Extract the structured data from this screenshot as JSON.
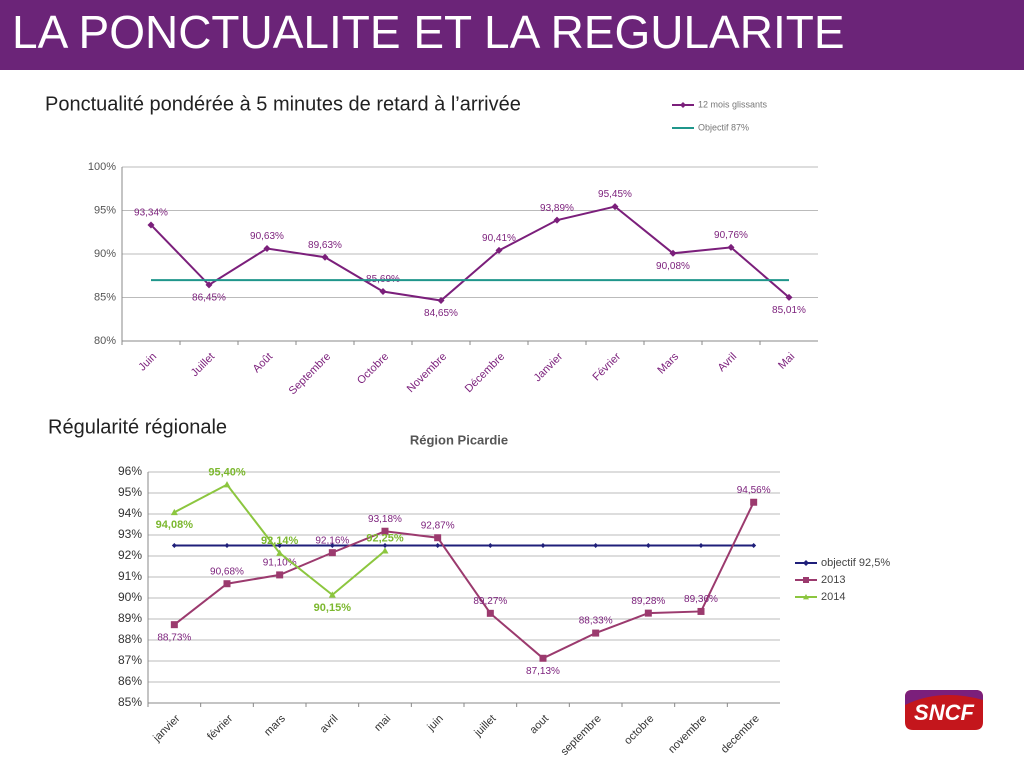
{
  "header": {
    "title": "LA PONCTUALITE ET LA REGULARITE"
  },
  "logo": "SNCF",
  "chart_data": [
    {
      "type": "line",
      "title": "Ponctualité pondérée à 5 minutes de retard à l’arrivée",
      "categories": [
        "Juin",
        "Juillet",
        "Août",
        "Septembre",
        "Octobre",
        "Novembre",
        "Décembre",
        "Janvier",
        "Février",
        "Mars",
        "Avril",
        "Mai"
      ],
      "series": [
        {
          "name": "12 mois glissants",
          "color": "#7b1f7b",
          "marker": "diamond",
          "values": [
            93.34,
            86.45,
            90.63,
            89.63,
            85.69,
            84.65,
            90.41,
            93.89,
            95.45,
            90.08,
            90.76,
            85.01
          ],
          "value_labels": [
            "93,34%",
            "86,45%",
            "90,63%",
            "89,63%",
            "85,69%",
            "84,65%",
            "90,41%",
            "93,89%",
            "95,45%",
            "90,08%",
            "90,76%",
            "85,01%"
          ]
        },
        {
          "name": "Objectif 87%",
          "color": "#1f968b",
          "marker": "none",
          "values": [
            87,
            87,
            87,
            87,
            87,
            87,
            87,
            87,
            87,
            87,
            87,
            87
          ]
        }
      ],
      "ylim": [
        80,
        100
      ],
      "yticks": [
        {
          "value": 80,
          "label": "80%"
        },
        {
          "value": 85,
          "label": "85%"
        },
        {
          "value": 90,
          "label": "90%"
        },
        {
          "value": 95,
          "label": "95%"
        },
        {
          "value": 100,
          "label": "100%"
        }
      ],
      "grid": true,
      "legend": "top-right"
    },
    {
      "type": "line",
      "heading": "Régularité régionale",
      "title": "Région Picardie",
      "categories": [
        "janvier",
        "février",
        "mars",
        "avril",
        "mai",
        "juin",
        "juillet",
        "aout",
        "septembre",
        "octobre",
        "novembre",
        "decembre"
      ],
      "series": [
        {
          "name": "objectif 92,5%",
          "color": "#1f1f7a",
          "marker": "diamond",
          "values": [
            92.5,
            92.5,
            92.5,
            92.5,
            92.5,
            92.5,
            92.5,
            92.5,
            92.5,
            92.5,
            92.5,
            92.5
          ]
        },
        {
          "name": "2013",
          "color": "#9b3a6e",
          "marker": "square",
          "values": [
            88.73,
            90.68,
            91.1,
            92.16,
            93.18,
            92.87,
            89.27,
            87.13,
            88.33,
            89.28,
            89.36,
            94.56
          ],
          "value_labels": [
            "88,73%",
            "90,68%",
            "91,10%",
            "92,16%",
            "93,18%",
            "92,87%",
            "89,27%",
            "87,13%",
            "88,33%",
            "89,28%",
            "89,36%",
            "94,56%"
          ]
        },
        {
          "name": "2014",
          "color": "#8cc63f",
          "marker": "triangle",
          "values": [
            94.08,
            95.4,
            92.14,
            90.15,
            92.25,
            null,
            null,
            null,
            null,
            null,
            null,
            null
          ],
          "value_labels": [
            "94,08%",
            "95,40%",
            "92,14%",
            "90,15%",
            "92,25%",
            null,
            null,
            null,
            null,
            null,
            null,
            null
          ]
        }
      ],
      "ylim": [
        85,
        96
      ],
      "yticks": [
        {
          "value": 85,
          "label": "85%"
        },
        {
          "value": 86,
          "label": "86%"
        },
        {
          "value": 87,
          "label": "87%"
        },
        {
          "value": 88,
          "label": "88%"
        },
        {
          "value": 89,
          "label": "89%"
        },
        {
          "value": 90,
          "label": "90%"
        },
        {
          "value": 91,
          "label": "91%"
        },
        {
          "value": 92,
          "label": "92%"
        },
        {
          "value": 93,
          "label": "93%"
        },
        {
          "value": 94,
          "label": "94%"
        },
        {
          "value": 95,
          "label": "95%"
        },
        {
          "value": 96,
          "label": "96%"
        }
      ],
      "grid": true,
      "legend": "right"
    }
  ]
}
